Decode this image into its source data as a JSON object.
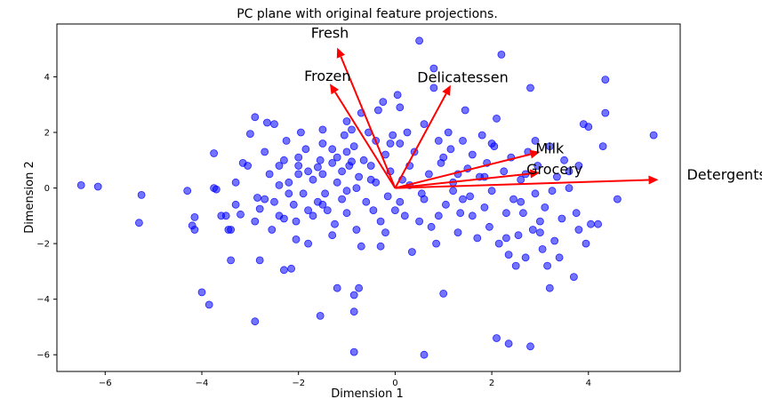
{
  "chart_data": {
    "type": "scatter",
    "title": "PC plane with original feature projections.",
    "xlabel": "Dimension 1",
    "ylabel": "Dimension 2",
    "xlim": [
      -7,
      5.9
    ],
    "ylim": [
      -6.6,
      5.9
    ],
    "xticks": [
      -6,
      -4,
      -2,
      0,
      2,
      4
    ],
    "yticks": [
      -6,
      -4,
      -2,
      0,
      2,
      4
    ],
    "xtick_labels": [
      "−6",
      "−4",
      "−2",
      "0",
      "2",
      "4"
    ],
    "ytick_labels": [
      "−6",
      "−4",
      "−2",
      "0",
      "2",
      "4"
    ],
    "grid": false,
    "point_color": "#0000ff",
    "arrow_color": "#ff0000",
    "points": [
      [
        -6.5,
        0.1
      ],
      [
        -6.15,
        0.05
      ],
      [
        -5.25,
        -0.25
      ],
      [
        -5.3,
        -1.25
      ],
      [
        -4.3,
        -0.1
      ],
      [
        -4.15,
        -1.05
      ],
      [
        -4.15,
        -1.5
      ],
      [
        -4.2,
        -1.35
      ],
      [
        -4.0,
        -3.75
      ],
      [
        -3.85,
        -4.2
      ],
      [
        -3.75,
        1.25
      ],
      [
        -3.75,
        0.0
      ],
      [
        -3.7,
        -0.05
      ],
      [
        -3.6,
        -1.0
      ],
      [
        -3.5,
        -1.0
      ],
      [
        -3.45,
        -1.5
      ],
      [
        -3.4,
        -2.6
      ],
      [
        -3.3,
        0.2
      ],
      [
        -3.3,
        -0.6
      ],
      [
        -3.2,
        -0.95
      ],
      [
        -3.15,
        0.9
      ],
      [
        -3.0,
        1.95
      ],
      [
        -3.05,
        0.8
      ],
      [
        -2.9,
        2.55
      ],
      [
        -2.85,
        -0.35
      ],
      [
        -2.8,
        -0.75
      ],
      [
        -2.9,
        -1.2
      ],
      [
        -2.8,
        -2.6
      ],
      [
        -2.9,
        -4.8
      ],
      [
        -2.7,
        -0.4
      ],
      [
        -2.65,
        2.35
      ],
      [
        -2.5,
        2.3
      ],
      [
        -2.5,
        -0.5
      ],
      [
        -2.6,
        0.5
      ],
      [
        -2.4,
        0.8
      ],
      [
        -2.3,
        1.0
      ],
      [
        -2.4,
        -1.0
      ],
      [
        -2.2,
        -0.2
      ],
      [
        -2.2,
        0.2
      ],
      [
        -2.3,
        -1.1
      ],
      [
        -2.4,
        0.1
      ],
      [
        -2.25,
        1.7
      ],
      [
        -2.0,
        0.8
      ],
      [
        -2.1,
        -0.6
      ],
      [
        -2.05,
        -1.2
      ],
      [
        -2.0,
        0.5
      ],
      [
        -2.3,
        -2.95
      ],
      [
        -2.15,
        -2.9
      ],
      [
        -1.95,
        2.0
      ],
      [
        -1.85,
        1.4
      ],
      [
        -1.9,
        -0.2
      ],
      [
        -1.8,
        0.6
      ],
      [
        -1.8,
        -0.8
      ],
      [
        -1.7,
        0.3
      ],
      [
        -1.7,
        -1.0
      ],
      [
        -1.6,
        -0.5
      ],
      [
        -1.55,
        1.0
      ],
      [
        -1.5,
        2.1
      ],
      [
        -1.5,
        1.6
      ],
      [
        -1.5,
        0.5
      ],
      [
        -1.45,
        -0.2
      ],
      [
        -1.4,
        -0.8
      ],
      [
        -1.3,
        0.9
      ],
      [
        -1.3,
        1.4
      ],
      [
        -1.25,
        -1.3
      ],
      [
        -1.2,
        0.2
      ],
      [
        -1.1,
        0.6
      ],
      [
        -1.1,
        -0.4
      ],
      [
        -1.05,
        1.9
      ],
      [
        -1.0,
        1.3
      ],
      [
        -1.0,
        -0.1
      ],
      [
        -1.0,
        -0.9
      ],
      [
        -0.95,
        0.8
      ],
      [
        -0.9,
        2.1
      ],
      [
        -0.85,
        1.5
      ],
      [
        -0.8,
        0.0
      ],
      [
        -0.8,
        -1.5
      ],
      [
        -0.75,
        0.4
      ],
      [
        -0.7,
        2.7
      ],
      [
        -0.7,
        -2.1
      ],
      [
        -0.65,
        1.0
      ],
      [
        -0.6,
        -0.5
      ],
      [
        -0.55,
        2.0
      ],
      [
        -0.5,
        0.8
      ],
      [
        -0.45,
        -0.8
      ],
      [
        -0.4,
        1.7
      ],
      [
        -0.4,
        0.2
      ],
      [
        -0.35,
        2.8
      ],
      [
        -0.3,
        -1.2
      ],
      [
        -0.25,
        3.1
      ],
      [
        -0.2,
        1.2
      ],
      [
        -0.15,
        -0.3
      ],
      [
        -0.1,
        0.6
      ],
      [
        -0.05,
        1.9
      ],
      [
        0.0,
        -0.8
      ],
      [
        0.05,
        3.35
      ],
      [
        0.1,
        2.9
      ],
      [
        0.1,
        1.6
      ],
      [
        0.15,
        0.3
      ],
      [
        0.2,
        -1.0
      ],
      [
        0.25,
        2.0
      ],
      [
        0.3,
        0.8
      ],
      [
        0.35,
        -2.3
      ],
      [
        0.4,
        1.3
      ],
      [
        0.5,
        5.3
      ],
      [
        0.55,
        -0.2
      ],
      [
        0.6,
        2.3
      ],
      [
        0.6,
        -6.0
      ],
      [
        0.7,
        0.5
      ],
      [
        0.75,
        -1.4
      ],
      [
        0.8,
        4.3
      ],
      [
        0.8,
        3.6
      ],
      [
        0.85,
        -2.0
      ],
      [
        0.9,
        1.7
      ],
      [
        0.95,
        0.9
      ],
      [
        1.0,
        -3.8
      ],
      [
        1.05,
        -0.6
      ],
      [
        1.1,
        2.0
      ],
      [
        1.15,
        1.4
      ],
      [
        1.2,
        0.2
      ],
      [
        1.3,
        -1.6
      ],
      [
        1.35,
        -0.9
      ],
      [
        1.4,
        1.7
      ],
      [
        1.45,
        2.8
      ],
      [
        1.5,
        0.7
      ],
      [
        1.55,
        -0.3
      ],
      [
        1.6,
        1.2
      ],
      [
        1.7,
        -1.8
      ],
      [
        1.75,
        0.4
      ],
      [
        1.8,
        1.9
      ],
      [
        1.85,
        -0.7
      ],
      [
        1.9,
        0.9
      ],
      [
        1.95,
        -1.4
      ],
      [
        2.0,
        -0.1
      ],
      [
        2.05,
        1.5
      ],
      [
        2.1,
        2.5
      ],
      [
        2.15,
        -2.0
      ],
      [
        2.2,
        4.8
      ],
      [
        2.25,
        0.6
      ],
      [
        2.3,
        -0.9
      ],
      [
        2.35,
        -2.4
      ],
      [
        2.4,
        1.1
      ],
      [
        2.45,
        -0.4
      ],
      [
        2.5,
        -2.8
      ],
      [
        2.55,
        -1.7
      ],
      [
        2.6,
        0.3
      ],
      [
        2.65,
        -0.9
      ],
      [
        2.7,
        -2.5
      ],
      [
        2.75,
        1.3
      ],
      [
        2.8,
        3.6
      ],
      [
        2.8,
        -5.7
      ],
      [
        2.85,
        -1.5
      ],
      [
        2.9,
        -0.2
      ],
      [
        2.95,
        0.8
      ],
      [
        3.0,
        -1.2
      ],
      [
        3.05,
        -2.2
      ],
      [
        3.1,
        -0.7
      ],
      [
        3.15,
        -2.8
      ],
      [
        3.2,
        1.5
      ],
      [
        3.2,
        -3.6
      ],
      [
        3.25,
        -0.1
      ],
      [
        3.3,
        -1.9
      ],
      [
        3.35,
        0.4
      ],
      [
        3.4,
        -2.5
      ],
      [
        3.45,
        -1.1
      ],
      [
        3.5,
        1.0
      ],
      [
        3.6,
        0.0
      ],
      [
        3.7,
        -3.2
      ],
      [
        3.75,
        -0.9
      ],
      [
        3.8,
        0.8
      ],
      [
        3.9,
        2.3
      ],
      [
        3.95,
        -2.0
      ],
      [
        4.0,
        2.2
      ],
      [
        4.05,
        -1.3
      ],
      [
        4.2,
        -1.3
      ],
      [
        4.3,
        1.5
      ],
      [
        4.35,
        3.9
      ],
      [
        4.35,
        2.7
      ],
      [
        4.6,
        -0.4
      ],
      [
        5.35,
        1.9
      ],
      [
        2.1,
        -5.4
      ],
      [
        2.35,
        -5.6
      ],
      [
        -0.85,
        -5.9
      ],
      [
        -1.55,
        -4.6
      ],
      [
        -1.2,
        -3.6
      ],
      [
        -0.85,
        -3.85
      ],
      [
        -0.75,
        -3.6
      ],
      [
        -0.85,
        -4.45
      ],
      [
        -2.05,
        -1.85
      ],
      [
        1.85,
        0.4
      ],
      [
        1.2,
        -0.1
      ],
      [
        -1.6,
        0.75
      ],
      [
        -1.2,
        1.1
      ],
      [
        -0.5,
        0.3
      ],
      [
        0.3,
        0.1
      ],
      [
        0.6,
        -0.4
      ],
      [
        -2.55,
        -1.5
      ],
      [
        -1.8,
        -2.0
      ],
      [
        -0.3,
        -2.1
      ],
      [
        0.5,
        -1.2
      ],
      [
        1.4,
        -0.4
      ],
      [
        2.7,
        0.5
      ],
      [
        3.6,
        0.6
      ],
      [
        -3.4,
        -1.5
      ],
      [
        -2.0,
        1.1
      ],
      [
        -1.3,
        -1.7
      ],
      [
        -0.9,
        0.95
      ],
      [
        0.1,
        -0.5
      ],
      [
        1.0,
        1.1
      ],
      [
        1.6,
        -1.0
      ],
      [
        2.3,
        -1.8
      ],
      [
        3.0,
        -1.6
      ],
      [
        3.8,
        -1.5
      ],
      [
        -1.0,
        2.4
      ],
      [
        -0.2,
        -1.6
      ],
      [
        0.9,
        -1.0
      ],
      [
        2.0,
        1.6
      ],
      [
        2.9,
        1.7
      ],
      [
        -2.7,
        1.3
      ],
      [
        -1.5,
        -0.6
      ],
      [
        -0.1,
        1.6
      ],
      [
        1.3,
        0.5
      ],
      [
        2.6,
        -0.5
      ]
    ],
    "arrows": [
      {
        "name": "Fresh",
        "x": -1.2,
        "y": 5.05,
        "label_x": -1.35,
        "label_y": 5.4
      },
      {
        "name": "Frozen",
        "x": -1.35,
        "y": 3.75,
        "label_x": -1.4,
        "label_y": 3.85
      },
      {
        "name": "Delicatessen",
        "x": 1.15,
        "y": 3.7,
        "label_x": 1.4,
        "label_y": 3.8
      },
      {
        "name": "Milk",
        "x": 3.0,
        "y": 1.3,
        "label_x": 3.2,
        "label_y": 1.25
      },
      {
        "name": "Grocery",
        "x": 3.0,
        "y": 0.55,
        "label_x": 3.3,
        "label_y": 0.5
      },
      {
        "name": "Detergents_Paper",
        "x": 5.45,
        "y": 0.3,
        "label_x": 7.35,
        "label_y": 0.3
      }
    ]
  }
}
